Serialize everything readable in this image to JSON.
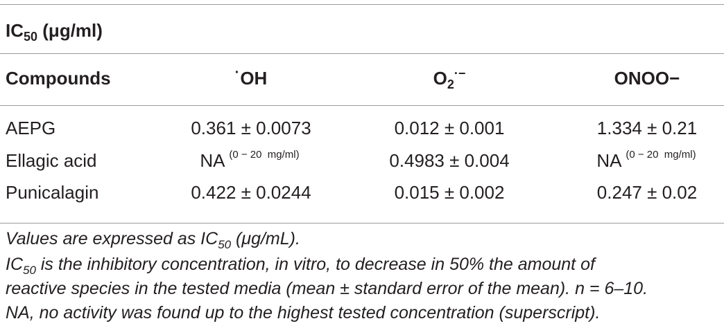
{
  "table": {
    "caption": {
      "main": "IC",
      "sub": "50",
      "unit": " (μg/ml)"
    },
    "headers": {
      "compounds": "Compounds",
      "oh": {
        "radical": "·",
        "text": "OH"
      },
      "o2": {
        "main": "O",
        "sub": "2",
        "sup": "·−"
      },
      "onoo": "ONOO−"
    },
    "rows": [
      {
        "compound": "AEPG",
        "oh": "0.361 ± 0.0073",
        "oh_sup": "",
        "o2": "0.012 ± 0.001",
        "onoo": "1.334 ± 0.21",
        "onoo_sup": ""
      },
      {
        "compound": "Ellagic acid",
        "oh": "NA",
        "oh_sup": "(0 − 20  mg/ml)",
        "o2": "0.4983 ± 0.004",
        "onoo": "NA",
        "onoo_sup": "(0 − 20  mg/ml)"
      },
      {
        "compound": "Punicalagin",
        "oh": "0.422 ± 0.0244",
        "oh_sup": "",
        "o2": "0.015 ± 0.002",
        "onoo": "0.247 ± 0.02",
        "onoo_sup": ""
      }
    ]
  },
  "footnotes": {
    "line1": {
      "pre": "Values are expressed as IC",
      "sub": "50",
      "post": " (μg/mL)."
    },
    "line2": {
      "main": "IC",
      "sub": "50",
      "rest": " is the inhibitory concentration, in vitro, to decrease in 50% the amount of"
    },
    "line3": "reactive species in the tested media (mean ± standard error of the mean). n = 6–10.",
    "line4": "NA, no activity was found up to the highest tested concentration (superscript)."
  }
}
